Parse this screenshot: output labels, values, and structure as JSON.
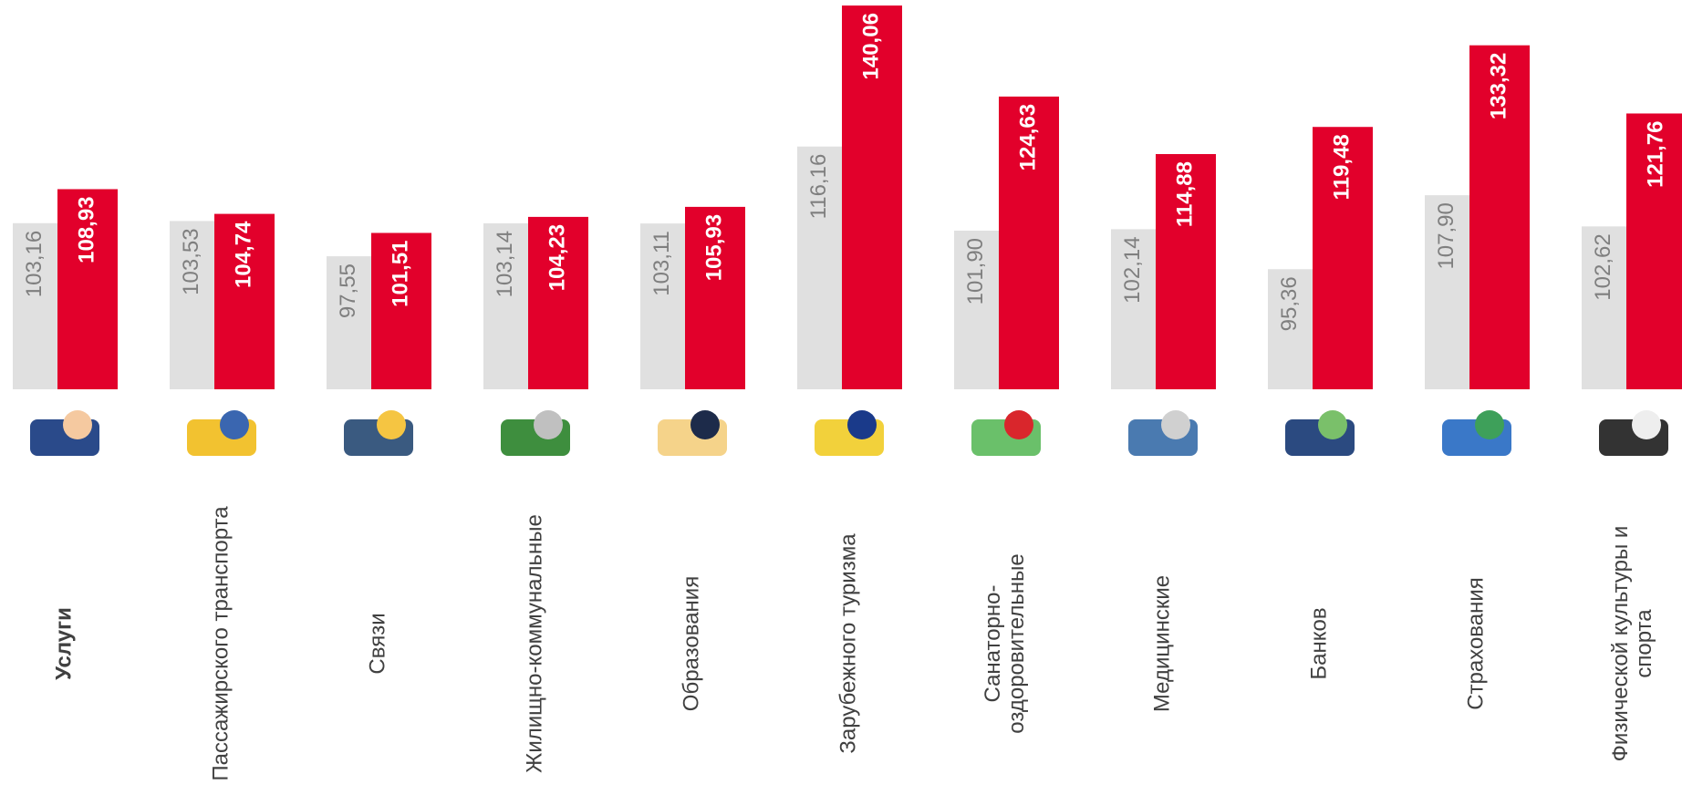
{
  "chart_data": {
    "type": "bar",
    "categories": [
      "Услуги",
      "Пассажирского транспорта",
      "Связи",
      "Жилищно-коммунальные",
      "Образования",
      "Зарубежного туризма",
      "Санаторно-\nоздоровительные",
      "Медицинские",
      "Банков",
      "Страхования",
      "Физической культуры и\nспорта"
    ],
    "ylim": [
      75,
      141
    ],
    "series": [
      {
        "color": "#e0e0e0",
        "label_color": "#7f7f7f",
        "values": [
          103.16,
          103.53,
          97.55,
          103.14,
          103.11,
          116.16,
          101.9,
          102.14,
          95.36,
          107.9,
          102.62
        ],
        "value_labels": [
          "103,16",
          "103,53",
          "97,55",
          "103,14",
          "103,11",
          "116,16",
          "101,90",
          "102,14",
          "95,36",
          "107,90",
          "102,62"
        ]
      },
      {
        "color": "#e2002b",
        "label_color": "#ffffff",
        "values": [
          108.93,
          104.74,
          101.51,
          104.23,
          105.93,
          140.06,
          124.63,
          114.88,
          119.48,
          133.32,
          121.76
        ],
        "value_labels": [
          "108,93",
          "104,74",
          "101,51",
          "104,23",
          "105,93",
          "140,06",
          "124,63",
          "114,88",
          "119,48",
          "133,32",
          "121,76"
        ]
      }
    ]
  }
}
